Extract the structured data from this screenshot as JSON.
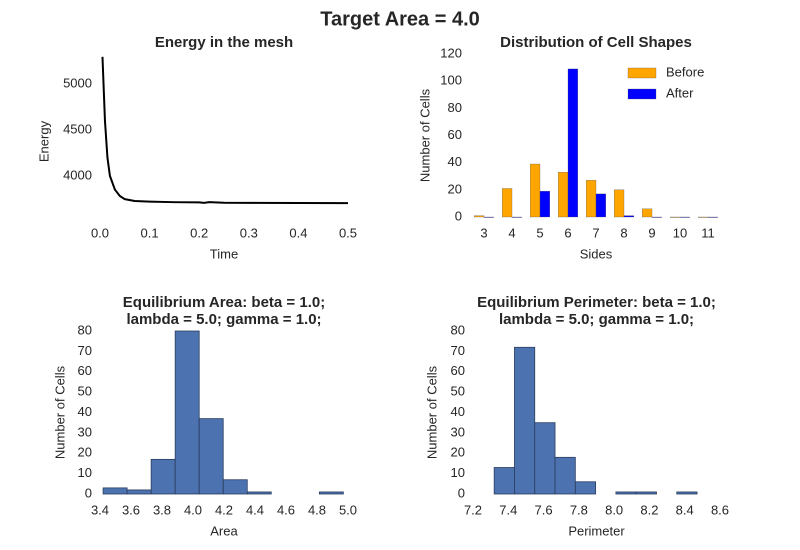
{
  "title": "Target Area = 4.0",
  "chart_data": [
    {
      "type": "line",
      "title": [
        "Energy in the mesh"
      ],
      "xlabel": "Time",
      "ylabel": "Energy",
      "color": "#000000",
      "x": [
        0.005,
        0.01,
        0.015,
        0.02,
        0.03,
        0.04,
        0.05,
        0.07,
        0.1,
        0.15,
        0.2,
        0.21,
        0.22,
        0.25,
        0.3,
        0.4,
        0.5
      ],
      "values": [
        5300,
        4600,
        4200,
        4000,
        3850,
        3780,
        3745,
        3725,
        3718,
        3712,
        3710,
        3705,
        3712,
        3706,
        3705,
        3703,
        3702
      ],
      "xlim": [
        0,
        0.5
      ],
      "ylim": [
        3430,
        5320
      ],
      "xticks": [
        {
          "value": 0,
          "label": "0.0"
        },
        0.1,
        0.2,
        0.3,
        0.4,
        0.5
      ],
      "yticks": [
        4000,
        4500,
        5000
      ]
    },
    {
      "type": "bar",
      "title": [
        "Distribution of Cell Shapes"
      ],
      "xlabel": "Sides",
      "ylabel": "Number of Cells",
      "categories": [
        "3",
        "4",
        "5",
        "6",
        "7",
        "8",
        "9",
        "10",
        "11"
      ],
      "series": [
        {
          "name": "Before",
          "color": "#ffa500",
          "values": [
            1,
            21,
            39,
            33,
            27,
            20,
            6,
            0,
            0
          ]
        },
        {
          "name": "After",
          "color": "#0000ff",
          "values": [
            0,
            0,
            19,
            109,
            17,
            1,
            0,
            0,
            0
          ]
        }
      ],
      "ylim": [
        0,
        120
      ],
      "yticks": [
        0,
        20,
        40,
        60,
        80,
        100,
        120
      ],
      "legend": "upper right"
    },
    {
      "type": "histogram",
      "title": [
        "Equilibrium Area: beta = 1.0;",
        "lambda = 5.0; gamma = 1.0;"
      ],
      "xlabel": "Area",
      "ylabel": "Number of Cells",
      "color": "#4c72b0",
      "bins": [
        3.42,
        3.575,
        3.73,
        3.885,
        4.04,
        4.195,
        4.35,
        4.505,
        4.66,
        4.815,
        4.97
      ],
      "values": [
        3,
        2,
        17,
        80,
        37,
        7,
        1,
        0,
        0,
        1
      ],
      "xlim": [
        3.4,
        5.0
      ],
      "ylim": [
        0,
        80
      ],
      "xticks": [
        3.4,
        3.6,
        3.8,
        {
          "value": 4,
          "label": "4.0"
        },
        4.2,
        4.4,
        4.6,
        4.8,
        {
          "value": 5,
          "label": "5.0"
        }
      ],
      "yticks": [
        0,
        10,
        20,
        30,
        40,
        50,
        60,
        70,
        80
      ]
    },
    {
      "type": "histogram",
      "title": [
        "Equilibrium Perimeter: beta = 1.0;",
        "lambda = 5.0; gamma = 1.0;"
      ],
      "xlabel": "Perimeter",
      "ylabel": "Number of Cells",
      "color": "#4c72b0",
      "bins": [
        7.32,
        7.435,
        7.55,
        7.665,
        7.78,
        7.895,
        8.01,
        8.125,
        8.24,
        8.355,
        8.47
      ],
      "values": [
        13,
        72,
        35,
        18,
        6,
        0,
        1,
        1,
        0,
        1
      ],
      "xlim": [
        7.2,
        8.6
      ],
      "ylim": [
        0,
        80
      ],
      "xticks": [
        7.2,
        7.4,
        7.6,
        7.8,
        {
          "value": 8,
          "label": "8.0"
        },
        8.2,
        8.4,
        8.6
      ],
      "yticks": [
        0,
        10,
        20,
        30,
        40,
        50,
        60,
        70,
        80
      ]
    }
  ]
}
